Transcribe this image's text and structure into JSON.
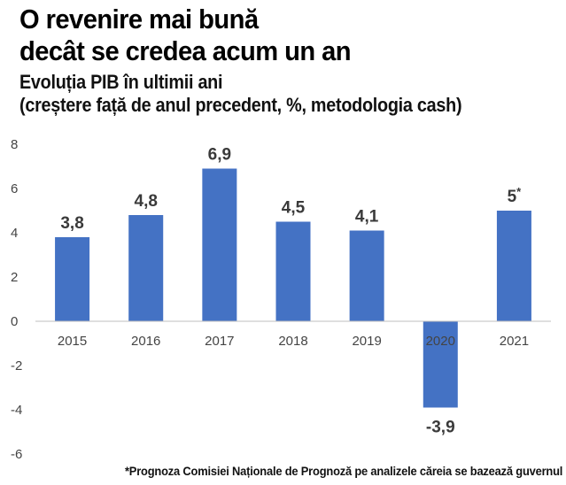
{
  "header": {
    "title_line1": "O revenire mai bună",
    "title_line2": "decât se credea acum un an",
    "subtitle_line1": "Evoluția PIB în ultimii ani",
    "subtitle_line2": "(creștere față de anul precedent, %, metodologia cash)"
  },
  "chart_data": {
    "type": "bar",
    "categories": [
      "2015",
      "2016",
      "2017",
      "2018",
      "2019",
      "2020",
      "2021"
    ],
    "values": [
      3.8,
      4.8,
      6.9,
      4.5,
      4.1,
      -3.9,
      5
    ],
    "data_labels": [
      "3,8",
      "4,8",
      "6,9",
      "4,5",
      "4,1",
      "-3,9",
      "5"
    ],
    "data_label_superscripts": [
      "",
      "",
      "",
      "",
      "",
      "",
      "*"
    ],
    "yticks": [
      8,
      6,
      4,
      2,
      0,
      -2,
      -4,
      -6
    ],
    "ylim": [
      -6,
      8
    ],
    "grid": false,
    "bar_color": "#4472c4"
  },
  "footnote": "*Prognoza Comisiei Naționale de Prognoză pe analizele căreia se bazează guvernul"
}
